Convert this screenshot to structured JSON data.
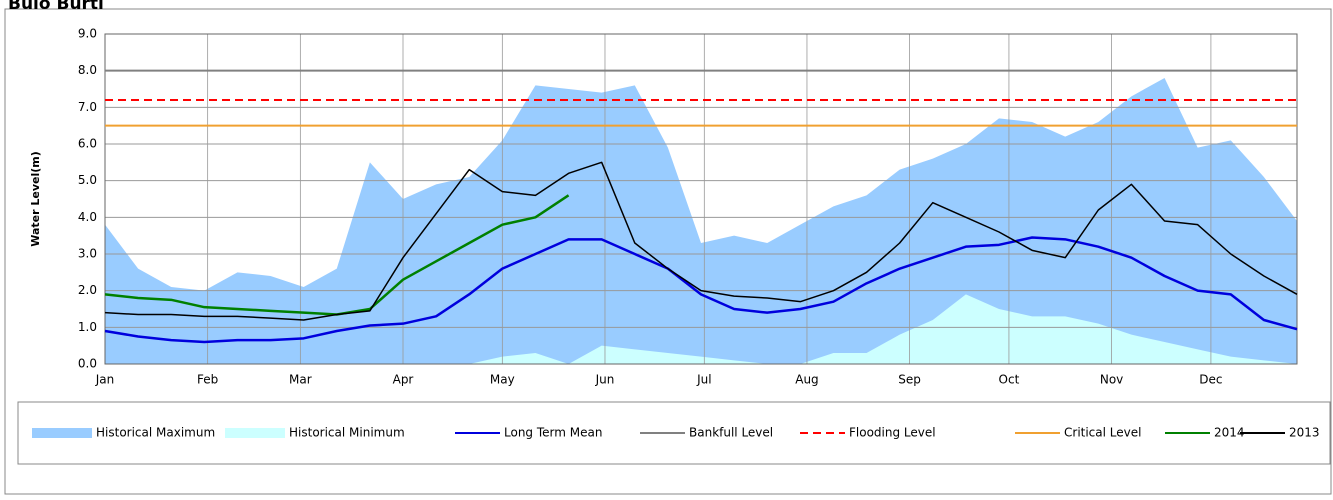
{
  "chart_data": {
    "type": "line",
    "title": "Bulo Burti",
    "y_label": "Water Level(m)",
    "x": [
      0,
      10,
      20,
      30,
      40,
      50,
      60,
      70,
      80,
      90,
      100,
      110,
      120,
      130,
      140,
      150,
      160,
      170,
      180,
      190,
      200,
      210,
      220,
      230,
      240,
      250,
      260,
      270,
      280,
      290,
      300,
      310,
      320,
      330,
      340,
      350,
      360
    ],
    "xlim": [
      0,
      360
    ],
    "xticks": [
      {
        "value": 0,
        "label": "Jan"
      },
      {
        "value": 31,
        "label": "Feb"
      },
      {
        "value": 59,
        "label": "Mar"
      },
      {
        "value": 90,
        "label": "Apr"
      },
      {
        "value": 120,
        "label": "May"
      },
      {
        "value": 151,
        "label": "Jun"
      },
      {
        "value": 181,
        "label": "Jul"
      },
      {
        "value": 212,
        "label": "Aug"
      },
      {
        "value": 243,
        "label": "Sep"
      },
      {
        "value": 273,
        "label": "Oct"
      },
      {
        "value": 304,
        "label": "Nov"
      },
      {
        "value": 334,
        "label": "Dec"
      }
    ],
    "ylim": [
      0,
      9
    ],
    "yticks": [
      {
        "value": 0,
        "label": "0.0"
      },
      {
        "value": 1,
        "label": "1.0"
      },
      {
        "value": 2,
        "label": "2.0"
      },
      {
        "value": 3,
        "label": "3.0"
      },
      {
        "value": 4,
        "label": "4.0"
      },
      {
        "value": 5,
        "label": "5.0"
      },
      {
        "value": 6,
        "label": "6.0"
      },
      {
        "value": 7,
        "label": "7.0"
      },
      {
        "value": 8,
        "label": "8.0"
      },
      {
        "value": 9,
        "label": "9.0"
      }
    ],
    "grid": true,
    "series": [
      {
        "name": "Historical Maximum",
        "kind": "area",
        "color": "#99ccff",
        "values": [
          3.8,
          2.6,
          2.1,
          2.0,
          2.5,
          2.4,
          2.1,
          2.6,
          5.5,
          4.5,
          4.9,
          5.1,
          6.1,
          7.6,
          7.5,
          7.4,
          7.6,
          5.9,
          3.3,
          3.5,
          3.3,
          3.8,
          4.3,
          4.6,
          5.3,
          5.6,
          6.0,
          6.7,
          6.6,
          6.2,
          6.6,
          7.3,
          7.8,
          5.9,
          6.1,
          5.1,
          3.9
        ]
      },
      {
        "name": "Historical Minimum",
        "kind": "area",
        "color": "#ccffff",
        "values": [
          0,
          0,
          0,
          0,
          0,
          0,
          0,
          0,
          0,
          0,
          0,
          0,
          0.2,
          0.3,
          0,
          0.5,
          0.4,
          0.3,
          0.2,
          0.1,
          0,
          0,
          0.3,
          0.3,
          0.8,
          1.2,
          1.9,
          1.5,
          1.3,
          1.3,
          1.1,
          0.8,
          0.6,
          0.4,
          0.2,
          0.1,
          0
        ]
      },
      {
        "name": "Long Term Mean",
        "kind": "line",
        "color": "#0000dd",
        "width": 2.5,
        "values": [
          0.9,
          0.75,
          0.65,
          0.6,
          0.65,
          0.65,
          0.7,
          0.9,
          1.05,
          1.1,
          1.3,
          1.9,
          2.6,
          3.0,
          3.4,
          3.4,
          3.0,
          2.6,
          1.9,
          1.5,
          1.4,
          1.5,
          1.7,
          2.2,
          2.6,
          2.9,
          3.2,
          3.25,
          3.45,
          3.4,
          3.2,
          2.9,
          2.4,
          2.0,
          1.9,
          1.2,
          0.95
        ]
      },
      {
        "name": "Bankfull Level",
        "kind": "hline",
        "color": "#808080",
        "dash": "",
        "value": 8.0
      },
      {
        "name": "Flooding Level",
        "kind": "hline",
        "color": "#ff0000",
        "dash": "8,5",
        "value": 7.2
      },
      {
        "name": "Critical Level",
        "kind": "hline",
        "color": "#f0a030",
        "dash": "",
        "value": 6.5
      },
      {
        "name": "2014",
        "kind": "line",
        "color": "#008000",
        "width": 2.5,
        "values": [
          1.9,
          1.8,
          1.75,
          1.55,
          1.5,
          1.45,
          1.4,
          1.35,
          1.5,
          2.3,
          2.8,
          3.3,
          3.8,
          4.0,
          4.6,
          null,
          null,
          null,
          null,
          null,
          null,
          null,
          null,
          null,
          null,
          null,
          null,
          null,
          null,
          null,
          null,
          null,
          null,
          null,
          null,
          null,
          null
        ]
      },
      {
        "name": "2013",
        "kind": "line",
        "color": "#000000",
        "width": 1.5,
        "values": [
          1.4,
          1.35,
          1.35,
          1.3,
          1.3,
          1.25,
          1.2,
          1.35,
          1.45,
          2.9,
          4.1,
          5.3,
          4.7,
          4.6,
          5.2,
          5.5,
          3.3,
          2.6,
          2.0,
          1.85,
          1.8,
          1.7,
          2.0,
          2.5,
          3.3,
          4.4,
          4.0,
          3.6,
          3.1,
          2.9,
          4.2,
          4.9,
          3.9,
          3.8,
          3.0,
          2.4,
          1.9
        ]
      }
    ]
  }
}
